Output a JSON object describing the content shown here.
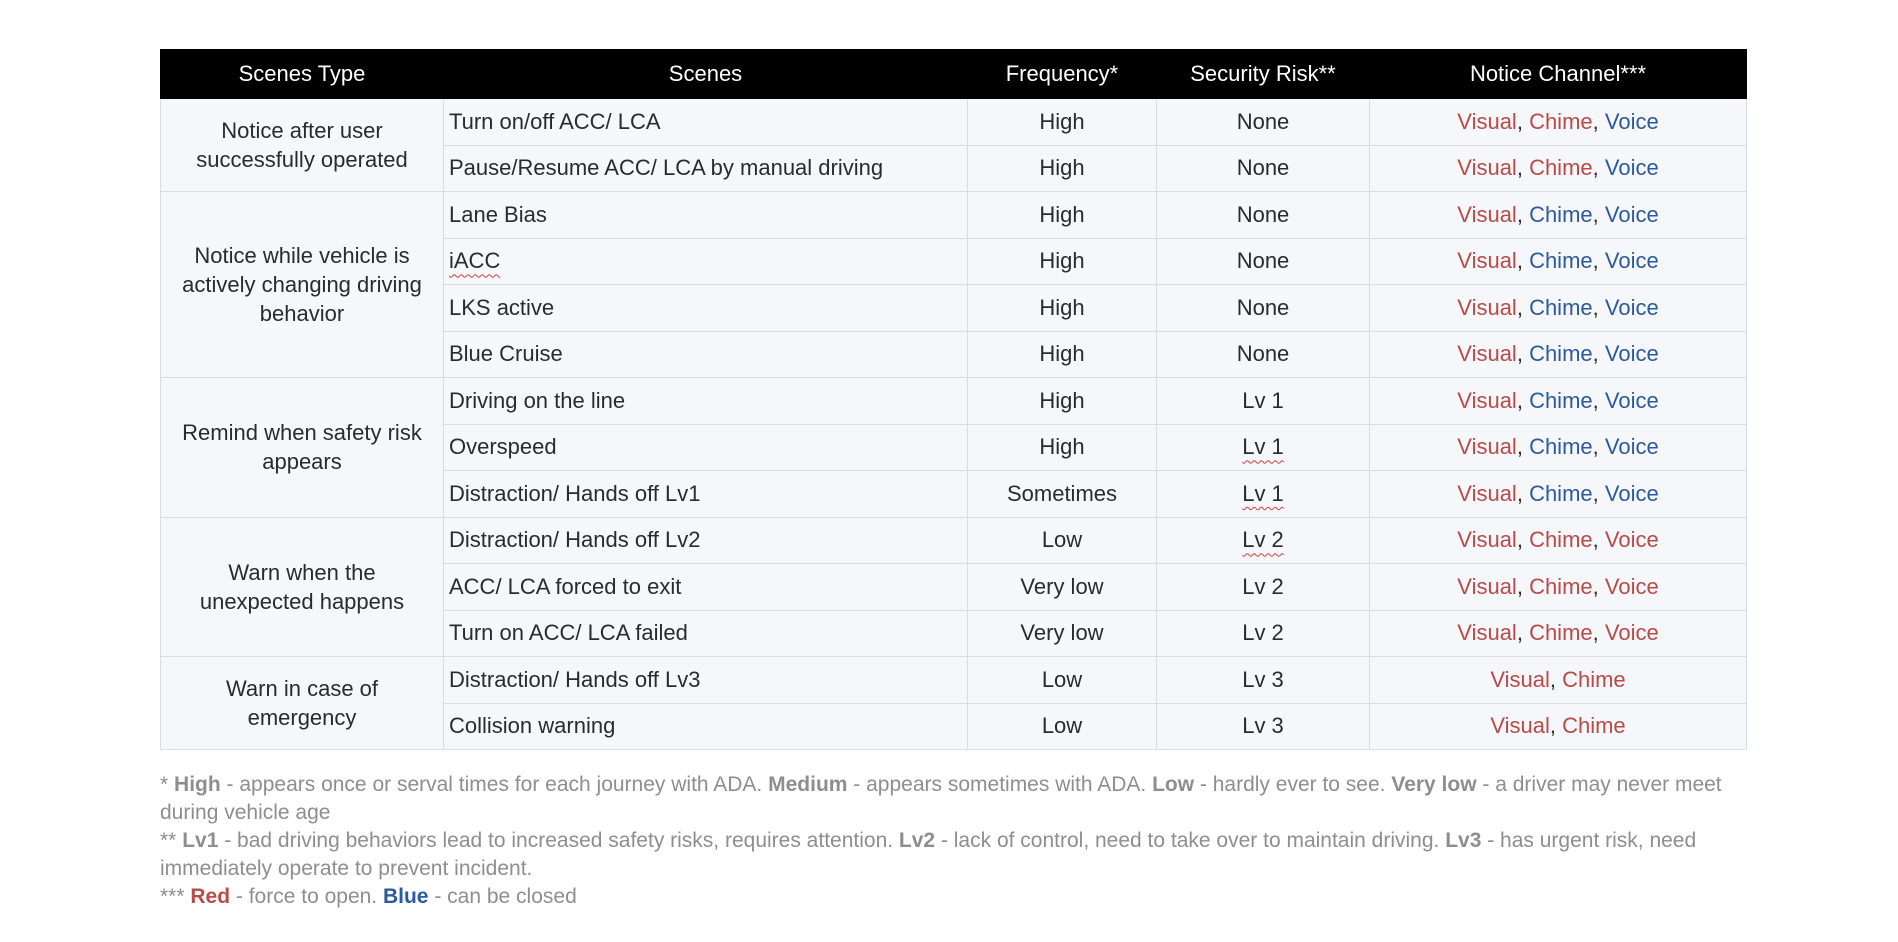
{
  "colors": {
    "red": "#b84a48",
    "blue": "#2c5a9c"
  },
  "table": {
    "headers": [
      "Scenes Type",
      "Scenes",
      "Frequency*",
      "Security Risk**",
      "Notice Channel***"
    ],
    "groups": [
      {
        "type": "Notice after user successfully operated",
        "rows": [
          {
            "scene": "Turn on/off ACC/ LCA",
            "frequency": "High",
            "risk": "None",
            "channels": [
              {
                "label": "Visual",
                "color": "red"
              },
              {
                "label": "Chime",
                "color": "red"
              },
              {
                "label": "Voice",
                "color": "blue"
              }
            ]
          },
          {
            "scene": "Pause/Resume ACC/ LCA by manual driving",
            "frequency": "High",
            "risk": "None",
            "channels": [
              {
                "label": "Visual",
                "color": "red"
              },
              {
                "label": "Chime",
                "color": "red"
              },
              {
                "label": "Voice",
                "color": "blue"
              }
            ]
          }
        ]
      },
      {
        "type": "Notice while vehicle is actively changing driving behavior",
        "rows": [
          {
            "scene": "Lane Bias",
            "frequency": "High",
            "risk": "None",
            "channels": [
              {
                "label": "Visual",
                "color": "red"
              },
              {
                "label": "Chime",
                "color": "blue"
              },
              {
                "label": "Voice",
                "color": "blue"
              }
            ]
          },
          {
            "scene": "iACC",
            "frequency": "High",
            "risk": "None",
            "channels": [
              {
                "label": "Visual",
                "color": "red"
              },
              {
                "label": "Chime",
                "color": "blue"
              },
              {
                "label": "Voice",
                "color": "blue"
              }
            ]
          },
          {
            "scene": "LKS active",
            "frequency": "High",
            "risk": "None",
            "channels": [
              {
                "label": "Visual",
                "color": "red"
              },
              {
                "label": "Chime",
                "color": "blue"
              },
              {
                "label": "Voice",
                "color": "blue"
              }
            ]
          },
          {
            "scene": "Blue Cruise",
            "frequency": "High",
            "risk": "None",
            "channels": [
              {
                "label": "Visual",
                "color": "red"
              },
              {
                "label": "Chime",
                "color": "blue"
              },
              {
                "label": "Voice",
                "color": "blue"
              }
            ]
          }
        ]
      },
      {
        "type": "Remind when safety risk appears",
        "rows": [
          {
            "scene": "Driving on the line",
            "frequency": "High",
            "risk": "Lv 1",
            "channels": [
              {
                "label": "Visual",
                "color": "red"
              },
              {
                "label": "Chime",
                "color": "blue"
              },
              {
                "label": "Voice",
                "color": "blue"
              }
            ]
          },
          {
            "scene": "Overspeed",
            "frequency": "High",
            "risk": "Lv 1",
            "channels": [
              {
                "label": "Visual",
                "color": "red"
              },
              {
                "label": "Chime",
                "color": "blue"
              },
              {
                "label": "Voice",
                "color": "blue"
              }
            ]
          },
          {
            "scene": "Distraction/ Hands off Lv1",
            "frequency": "Sometimes",
            "risk": "Lv 1",
            "channels": [
              {
                "label": "Visual",
                "color": "red"
              },
              {
                "label": "Chime",
                "color": "blue"
              },
              {
                "label": "Voice",
                "color": "blue"
              }
            ]
          }
        ]
      },
      {
        "type": "Warn when the unexpected happens",
        "rows": [
          {
            "scene": "Distraction/ Hands off Lv2",
            "frequency": "Low",
            "risk": "Lv 2",
            "channels": [
              {
                "label": "Visual",
                "color": "red"
              },
              {
                "label": "Chime",
                "color": "red"
              },
              {
                "label": "Voice",
                "color": "red"
              }
            ]
          },
          {
            "scene": "ACC/ LCA forced to exit",
            "frequency": "Very low",
            "risk": "Lv 2",
            "channels": [
              {
                "label": "Visual",
                "color": "red"
              },
              {
                "label": "Chime",
                "color": "red"
              },
              {
                "label": "Voice",
                "color": "red"
              }
            ]
          },
          {
            "scene": "Turn on ACC/ LCA failed",
            "frequency": "Very low",
            "risk": "Lv 2",
            "channels": [
              {
                "label": "Visual",
                "color": "red"
              },
              {
                "label": "Chime",
                "color": "red"
              },
              {
                "label": "Voice",
                "color": "red"
              }
            ]
          }
        ]
      },
      {
        "type": "Warn in case of emergency",
        "rows": [
          {
            "scene": "Distraction/ Hands off Lv3",
            "frequency": "Low",
            "risk": "Lv 3",
            "channels": [
              {
                "label": "Visual",
                "color": "red"
              },
              {
                "label": "Chime",
                "color": "red"
              }
            ]
          },
          {
            "scene": "Collision warning",
            "frequency": "Low",
            "risk": "Lv 3",
            "channels": [
              {
                "label": "Visual",
                "color": "red"
              },
              {
                "label": "Chime",
                "color": "red"
              }
            ]
          }
        ]
      }
    ]
  },
  "footnotes": {
    "freq": {
      "marker": "*",
      "high_term": "High",
      "high_desc": " - appears once or serval times for each journey with ADA. ",
      "medium_term": "Medium",
      "medium_desc": " - appears sometimes with ADA. ",
      "low_term": "Low",
      "low_desc": " - hardly ever to see. ",
      "verylow_term": "Very low",
      "verylow_desc": " - a driver may never meet during vehicle age"
    },
    "risk": {
      "marker": "**",
      "lv1_term": "Lv1",
      "lv1_desc": " - bad driving behaviors lead to increased safety risks, requires attention. ",
      "lv2_term": "Lv2",
      "lv2_desc": " - lack of control, need to take over to maintain driving. ",
      "lv3_term": "Lv3",
      "lv3_desc": " - has urgent risk, need immediately operate to prevent incident."
    },
    "channel": {
      "marker": "***",
      "red_term": "Red",
      "red_desc": " - force to open. ",
      "blue_term": "Blue",
      "blue_desc": " - can be closed"
    }
  }
}
